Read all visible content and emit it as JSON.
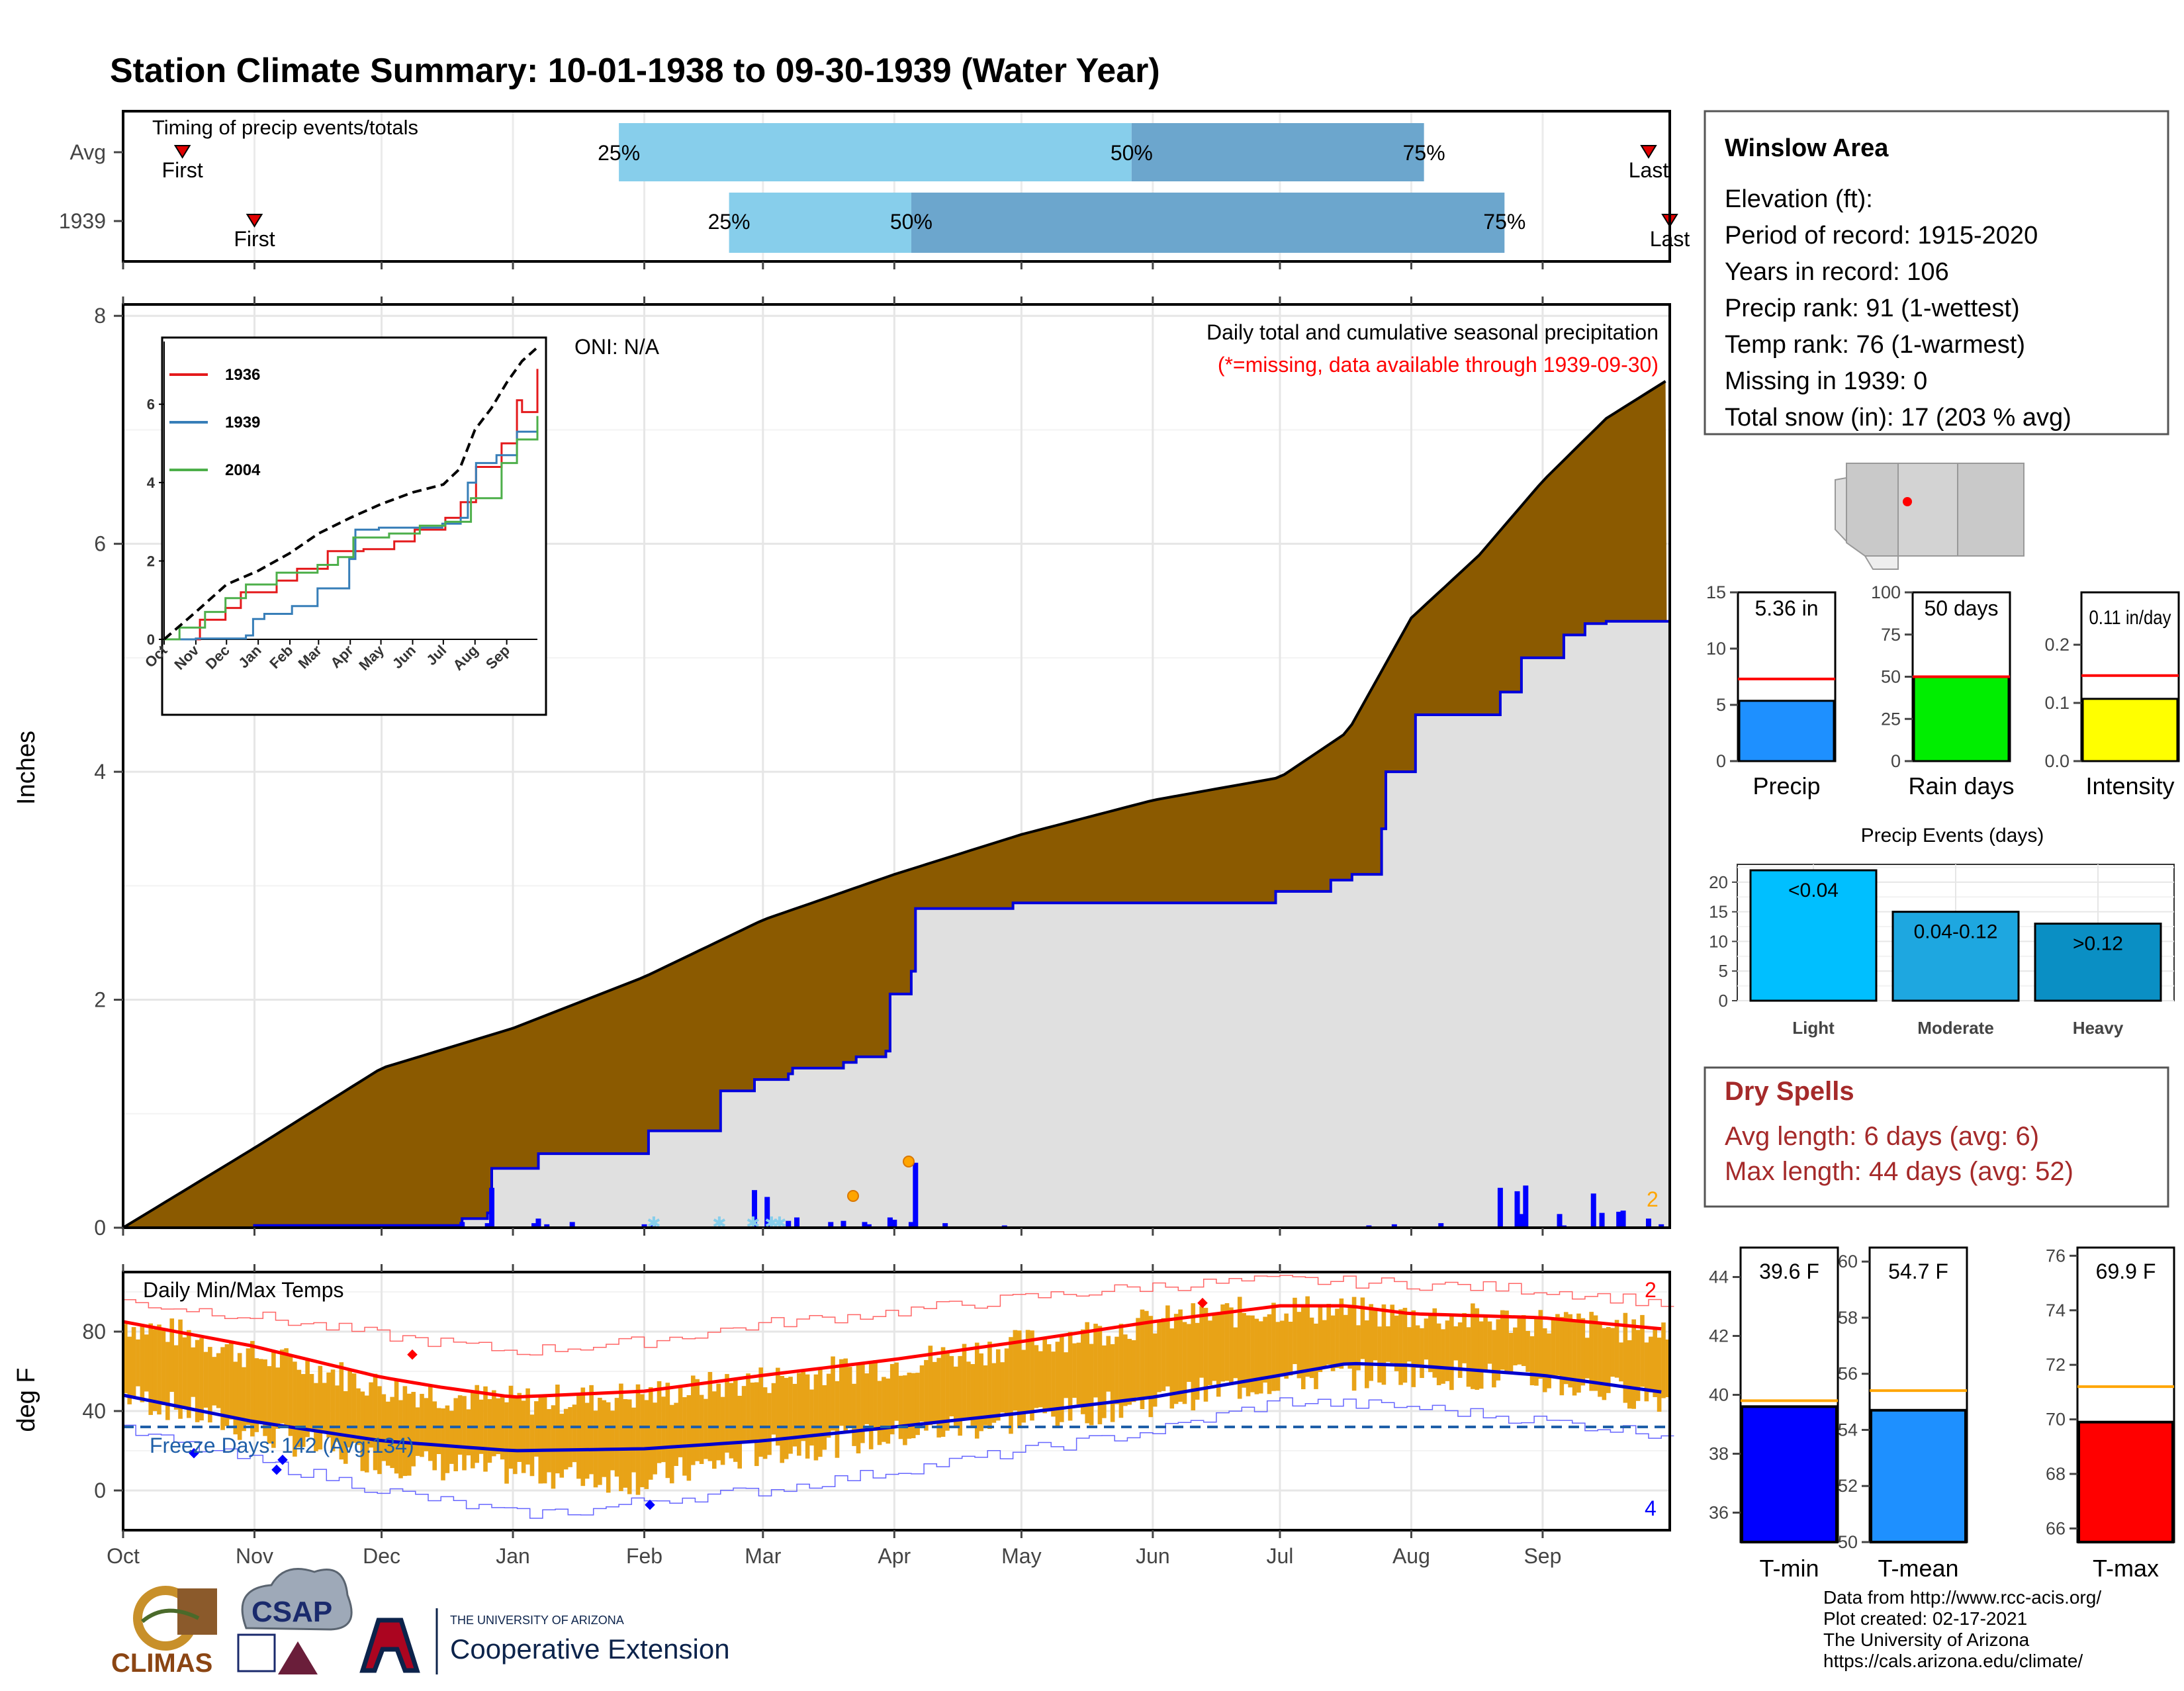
{
  "title": "Station Climate Summary: 10-01-1938 to 09-30-1939 (Water Year)",
  "colors": {
    "title": "#8B2500",
    "cum_avg_fill": "#8B5A00",
    "cum_obs_fill": "#E0E0E0",
    "cum_obs_line": "#0000DD",
    "light_q": "#87CEEB",
    "dark_q": "#6CA6CD",
    "temp_bars": "#E8A317",
    "tmax_avg": "#FF0000",
    "tmin_avg": "#0000CC",
    "freeze_line": "#1F5FA8",
    "dry_spell_text": "#A52A2A"
  },
  "timing": {
    "label": "Timing of precip events/totals",
    "rows": [
      {
        "name": "Avg",
        "first_label": "First",
        "last_label": "Last",
        "first_day": 14,
        "last_day": 360,
        "q25_day": 117,
        "q50_day": 238,
        "q75_day": 307,
        "q25_label": "25%",
        "q50_label": "50%",
        "q75_label": "75%"
      },
      {
        "name": "1939",
        "first_label": "First",
        "last_label": "Last",
        "first_day": 31,
        "last_day": 365,
        "q25_day": 143,
        "q50_day": 186,
        "q75_day": 326,
        "q25_label": "25%",
        "q50_label": "50%",
        "q75_label": "75%"
      }
    ]
  },
  "precip_panel": {
    "ylabel": "Inches",
    "oni_label": "ONI: N/A",
    "subtitle": "Daily total and cumulative seasonal precipitation",
    "missing_note": "(*=missing, data available through 1939-09-30)",
    "corner_count": "2",
    "y_ticks": [
      "0",
      "2",
      "4",
      "6",
      "8"
    ],
    "x_ticks": [
      "Oct",
      "Nov",
      "Dec",
      "Jan",
      "Feb",
      "Mar",
      "Apr",
      "May",
      "Jun",
      "Jul",
      "Aug",
      "Sep"
    ]
  },
  "inset": {
    "legend": [
      "1936",
      "1939",
      "2004"
    ],
    "y_ticks": [
      "0",
      "2",
      "4",
      "6"
    ],
    "x_ticks": [
      "Oct",
      "Nov",
      "Dec",
      "Jan",
      "Feb",
      "Mar",
      "Apr",
      "May",
      "Jun",
      "Jul",
      "Aug",
      "Sep"
    ]
  },
  "temp_panel": {
    "label": "Daily Min/Max Temps",
    "ylabel": "deg F",
    "freeze_text": "Freeze Days: 142 (Avg:134)",
    "count_top": "2",
    "count_bottom": "4",
    "y_ticks": [
      "0",
      "40",
      "80"
    ],
    "x_ticks": [
      "Oct",
      "Nov",
      "Dec",
      "Jan",
      "Feb",
      "Mar",
      "Apr",
      "May",
      "Jun",
      "Jul",
      "Aug",
      "Sep"
    ]
  },
  "station": {
    "name": "Winslow Area",
    "lines": [
      "Elevation (ft):",
      "Period of record: 1915-2020",
      "Years in record: 106",
      "Precip rank: 91 (1-wettest)",
      "Temp rank: 76 (1-warmest)",
      "Missing in 1939: 0",
      "Total snow (in): 17 (203 % avg)"
    ]
  },
  "summary_bars": [
    {
      "label": "Precip",
      "value_text": "5.36 in",
      "value": 5.36,
      "avg": 7.3,
      "ymax": 15,
      "ticks": [
        "0",
        "5",
        "10",
        "15"
      ],
      "color": "#1E90FF"
    },
    {
      "label": "Rain days",
      "value_text": "50 days",
      "value": 50,
      "avg": 50,
      "ymax": 100,
      "ticks": [
        "0",
        "25",
        "50",
        "75",
        "100"
      ],
      "color": "#00EE00"
    },
    {
      "label": "Intensity",
      "value_text": "0.11 in/day",
      "value": 0.107,
      "avg": 0.147,
      "ymax": 0.29,
      "ticks": [
        "0.0",
        "0.1",
        "0.2"
      ],
      "color": "#FFFF00"
    }
  ],
  "precip_events": {
    "title": "Precip Events (days)",
    "ticks": [
      "0",
      "5",
      "10",
      "15",
      "20"
    ],
    "bars": [
      {
        "category": "Light",
        "label": "<0.04",
        "value": 22,
        "color": "#00BFFF"
      },
      {
        "category": "Moderate",
        "label": "0.04-0.12",
        "value": 15,
        "color": "#1EA7E0"
      },
      {
        "category": "Heavy",
        "label": ">0.12",
        "value": 13,
        "color": "#0A8FC4"
      }
    ]
  },
  "dry_spells": {
    "title": "Dry Spells",
    "avg_line": "Avg length: 6 days (avg: 6)",
    "max_line": "Max length: 44 days (avg: 52)"
  },
  "temp_summary": [
    {
      "label": "T-min",
      "value_text": "39.6 F",
      "value": 39.6,
      "avg": 39.8,
      "ymin": 35,
      "ymax": 45,
      "ticks": [
        "36",
        "38",
        "40",
        "42",
        "44"
      ],
      "color": "#0000FF"
    },
    {
      "label": "T-mean",
      "value_text": "54.7 F",
      "value": 54.7,
      "avg": 55.4,
      "ymin": 50,
      "ymax": 60.5,
      "ticks": [
        "50",
        "52",
        "54",
        "56",
        "58",
        "60"
      ],
      "color": "#1E90FF"
    },
    {
      "label": "T-max",
      "value_text": "69.9 F",
      "value": 69.9,
      "avg": 71.2,
      "ymin": 65.5,
      "ymax": 76.3,
      "ticks": [
        "66",
        "68",
        "70",
        "72",
        "74",
        "76"
      ],
      "color": "#FF0000"
    }
  ],
  "footer": {
    "lines": [
      "Data from http://www.rcc-acis.org/",
      "Plot created: 02-17-2021",
      "The University of Arizona",
      "https://cals.arizona.edu/climate/"
    ],
    "logo_climas": "CLIMAS",
    "logo_csap": "CSAP",
    "ua_small": "THE UNIVERSITY OF ARIZONA",
    "ua_big": "Cooperative Extension"
  },
  "chart_data": [
    {
      "type": "area",
      "title": "Daily total and cumulative seasonal precipitation",
      "ylabel": "Inches",
      "ylim": [
        0,
        8.1
      ],
      "x_unit": "day of water year (Oct 1 = 0)",
      "series": [
        {
          "name": "Average cumulative",
          "x": [
            0,
            31,
            61,
            92,
            123,
            151,
            182,
            212,
            243,
            273,
            289,
            304,
            320,
            335,
            350,
            365
          ],
          "values": [
            0,
            0.7,
            1.4,
            1.75,
            2.2,
            2.7,
            3.1,
            3.45,
            3.75,
            3.95,
            4.35,
            5.35,
            5.9,
            6.55,
            7.1,
            7.45
          ]
        },
        {
          "name": "1939 cumulative",
          "x": [
            0,
            30,
            31,
            79,
            80,
            86,
            87,
            97,
            98,
            124,
            125,
            141,
            149,
            157,
            158,
            170,
            173,
            180,
            181,
            186,
            187,
            208,
            210,
            270,
            272,
            285,
            290,
            297,
            298,
            303,
            305,
            320,
            325,
            330,
            340,
            345,
            350,
            365
          ],
          "values": [
            0,
            0,
            0.02,
            0.02,
            0.08,
            0.13,
            0.52,
            0.52,
            0.65,
            0.85,
            0.85,
            1.2,
            1.3,
            1.35,
            1.4,
            1.45,
            1.5,
            1.55,
            2.05,
            2.25,
            2.8,
            2.8,
            2.85,
            2.85,
            2.95,
            3.05,
            3.1,
            3.5,
            4.0,
            4.0,
            4.5,
            4.5,
            4.7,
            5.0,
            5.2,
            5.3,
            5.32,
            5.36
          ]
        }
      ],
      "daily_precip": {
        "day": [
          80,
          86,
          87,
          97,
          98,
          100,
          106,
          123,
          125,
          149,
          152,
          157,
          159,
          167,
          170,
          175,
          176,
          181,
          182,
          186,
          187,
          194,
          208,
          294,
          300,
          311,
          325,
          329,
          330,
          331,
          339,
          340,
          347,
          349,
          353,
          354,
          360,
          363
        ],
        "values": [
          0.05,
          0.04,
          0.35,
          0.04,
          0.08,
          0.03,
          0.05,
          0.03,
          0.03,
          0.33,
          0.27,
          0.06,
          0.09,
          0.05,
          0.06,
          0.05,
          0.03,
          0.09,
          0.07,
          0.05,
          0.57,
          0.04,
          0.02,
          0.02,
          0.03,
          0.04,
          0.35,
          0.32,
          0.12,
          0.37,
          0.12,
          0.02,
          0.3,
          0.13,
          0.14,
          0.15,
          0.08,
          0.03
        ]
      }
    },
    {
      "type": "line",
      "title": "",
      "ylim": [
        0,
        7.2
      ],
      "x_unit": "day of water year (Oct 1 = 0)",
      "series": [
        {
          "name": "1936",
          "color": "#E41A1C",
          "x": [
            0,
            20,
            35,
            60,
            75,
            110,
            130,
            160,
            195,
            225,
            245,
            275,
            290,
            305,
            330,
            345,
            350,
            365
          ],
          "values": [
            0,
            0,
            0.5,
            0.8,
            1.2,
            1.5,
            1.8,
            2.25,
            2.3,
            2.5,
            2.8,
            3.1,
            3.5,
            4.4,
            5.0,
            6.1,
            5.8,
            6.9
          ]
        },
        {
          "name": "1939",
          "color": "#377EB8",
          "x": [
            0,
            30,
            31,
            80,
            87,
            98,
            125,
            150,
            181,
            187,
            210,
            272,
            290,
            297,
            305,
            325,
            345,
            365
          ],
          "values": [
            0,
            0,
            0.02,
            0.1,
            0.52,
            0.65,
            0.85,
            1.3,
            2.05,
            2.8,
            2.85,
            2.95,
            3.1,
            4.0,
            4.5,
            4.7,
            5.3,
            5.36
          ]
        },
        {
          "name": "2004",
          "color": "#4DAF4A",
          "x": [
            0,
            15,
            40,
            60,
            80,
            110,
            150,
            170,
            185,
            220,
            250,
            275,
            300,
            330,
            345,
            365
          ],
          "values": [
            0,
            0.3,
            0.7,
            1.05,
            1.4,
            1.7,
            1.9,
            2.1,
            2.6,
            2.7,
            2.9,
            3.0,
            3.6,
            4.5,
            5.1,
            5.7
          ]
        },
        {
          "name": "Average",
          "color": "#000000",
          "x": [
            0,
            31,
            61,
            92,
            123,
            151,
            182,
            212,
            243,
            273,
            289,
            304,
            320,
            335,
            350,
            365
          ],
          "values": [
            0,
            0.7,
            1.4,
            1.75,
            2.2,
            2.7,
            3.1,
            3.45,
            3.75,
            3.95,
            4.35,
            5.35,
            5.9,
            6.55,
            7.1,
            7.45
          ]
        }
      ]
    },
    {
      "type": "bar",
      "title": "Daily Min/Max Temps",
      "ylabel": "deg F",
      "ylim": [
        -20,
        110
      ],
      "freeze_threshold": 32,
      "normal_max": {
        "x": [
          0,
          30,
          61,
          75,
          92,
          123,
          151,
          182,
          212,
          243,
          273,
          289,
          304,
          335,
          365
        ],
        "values": [
          85,
          73,
          57,
          52,
          47,
          50,
          58,
          66,
          75,
          85,
          93,
          93,
          89,
          87,
          81
        ]
      },
      "normal_min": {
        "x": [
          0,
          30,
          61,
          92,
          123,
          151,
          182,
          212,
          243,
          273,
          289,
          304,
          335,
          365
        ],
        "values": [
          48,
          35,
          25,
          20,
          21,
          25,
          32,
          39,
          47,
          58,
          64,
          63,
          58,
          49
        ]
      },
      "record_max": {
        "x": [
          0,
          30,
          61,
          92,
          123,
          151,
          182,
          212,
          243,
          273,
          304,
          335,
          365
        ],
        "values": [
          95,
          88,
          78,
          70,
          75,
          84,
          90,
          97,
          103,
          106,
          104,
          101,
          94
        ]
      },
      "record_min": {
        "x": [
          0,
          30,
          45,
          61,
          92,
          110,
          123,
          151,
          182,
          212,
          243,
          273,
          304,
          335,
          365
        ],
        "values": [
          30,
          15,
          8,
          0,
          -12,
          -10,
          -5,
          0,
          10,
          20,
          30,
          45,
          42,
          35,
          28
        ]
      },
      "obs_max_approx": {
        "x": [
          0,
          15,
          30,
          45,
          61,
          75,
          92,
          123,
          151,
          182,
          212,
          243,
          273,
          304,
          335,
          365
        ],
        "values": [
          84,
          78,
          68,
          62,
          52,
          48,
          45,
          48,
          56,
          64,
          74,
          85,
          92,
          88,
          85,
          80
        ]
      },
      "obs_min_approx": {
        "x": [
          0,
          15,
          30,
          45,
          61,
          75,
          92,
          123,
          151,
          182,
          212,
          243,
          273,
          304,
          335,
          365
        ],
        "values": [
          48,
          40,
          30,
          22,
          15,
          12,
          10,
          5,
          20,
          28,
          36,
          45,
          56,
          60,
          55,
          46
        ]
      }
    }
  ]
}
